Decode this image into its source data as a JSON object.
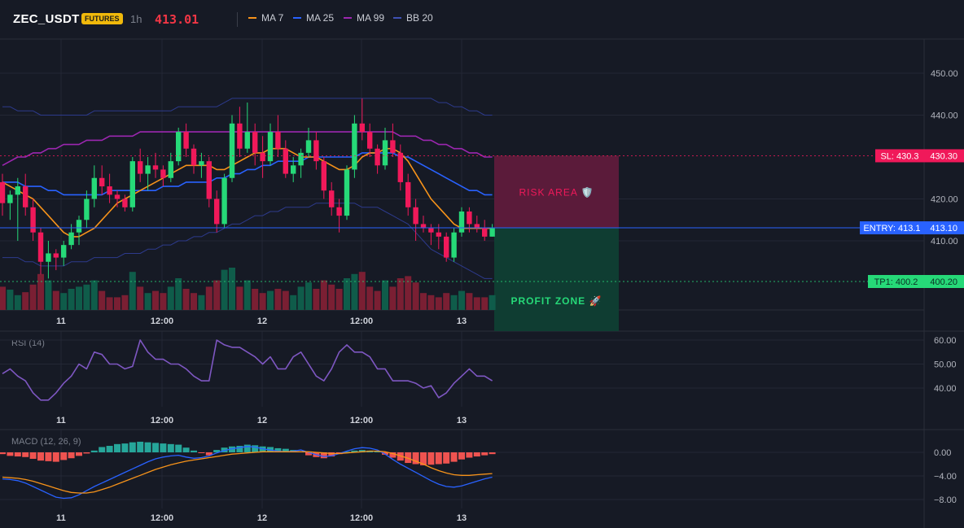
{
  "header": {
    "symbol": "ZEC_USDT",
    "badge": "FUTURES",
    "timeframe": "1h",
    "last_price": "413.01",
    "indicators": [
      {
        "label": "MA 7",
        "color": "#f7931a"
      },
      {
        "label": "MA 25",
        "color": "#2962ff"
      },
      {
        "label": "MA 99",
        "color": "#9c27b0"
      },
      {
        "label": "BB 20",
        "color": "#3f51b5"
      }
    ]
  },
  "colors": {
    "up": "#26d978",
    "down": "#f0195a",
    "background": "#161a25",
    "grid": "#232735",
    "risk": "#f0195a",
    "profit": "#26d978",
    "entry": "#2962ff"
  },
  "price_axis": {
    "ticks": [
      "450.00",
      "440.00",
      "430.30",
      "420.00",
      "413.10",
      "410.00",
      "400.20"
    ]
  },
  "time_axis": {
    "labels": [
      "11",
      "12:00",
      "12",
      "12:00",
      "13"
    ]
  },
  "levels": {
    "sl": {
      "label": "SL: 430.3",
      "price": "430.30",
      "value": 430.3
    },
    "entry": {
      "label": "ENTRY: 413.1",
      "price": "413.10",
      "value": 413.1
    },
    "tp1": {
      "label": "TP1: 400.2",
      "price": "400.20",
      "value": 400.2
    }
  },
  "zones": {
    "risk_label": "RISK AREA 🛡️",
    "profit_label": "PROFIT ZONE 🚀"
  },
  "rsi": {
    "title": "RSI (14)",
    "ticks": [
      "60.00",
      "50.00",
      "40.00"
    ],
    "values": [
      46,
      48,
      45,
      43,
      38,
      35,
      35,
      38,
      42,
      45,
      50,
      48,
      55,
      54,
      50,
      50,
      48,
      49,
      60,
      55,
      52,
      52,
      50,
      50,
      48,
      45,
      43,
      43,
      60,
      58,
      57,
      57,
      55,
      53,
      50,
      53,
      48,
      48,
      53,
      55,
      50,
      45,
      43,
      48,
      55,
      58,
      55,
      55,
      53,
      48,
      48,
      43,
      43,
      43,
      42,
      40,
      41,
      36,
      38,
      42,
      45,
      48,
      45,
      45,
      43
    ]
  },
  "macd": {
    "title": "MACD (12, 26, 9)",
    "ticks": [
      "0.00",
      "−4.00",
      "−8.00"
    ],
    "histogram": [
      -0.3,
      -0.6,
      -0.7,
      -0.8,
      -1.1,
      -1.4,
      -1.5,
      -1.6,
      -1.3,
      -1.0,
      -0.6,
      -0.2,
      0.3,
      0.9,
      1.1,
      1.4,
      1.5,
      1.7,
      1.8,
      1.7,
      1.6,
      1.5,
      1.4,
      1.3,
      0.8,
      0.3,
      -0.1,
      -0.5,
      0.4,
      0.8,
      1.0,
      1.1,
      1.3,
      1.2,
      1.0,
      0.9,
      0.7,
      0.6,
      0.4,
      0.2,
      -0.5,
      -0.8,
      -1.0,
      -0.7,
      -0.3,
      0.1,
      0.3,
      0.4,
      0.3,
      0.2,
      -0.4,
      -0.9,
      -1.4,
      -1.8,
      -2.0,
      -2.2,
      -2.1,
      -2.0,
      -1.9,
      -1.6,
      -1.2,
      -0.9,
      -0.7,
      -0.5,
      -0.3
    ],
    "macd_line": [
      -4.5,
      -4.6,
      -4.8,
      -5.2,
      -5.8,
      -6.4,
      -7.0,
      -7.6,
      -7.8,
      -7.7,
      -7.2,
      -6.5,
      -5.8,
      -5.2,
      -4.6,
      -4.0,
      -3.4,
      -2.8,
      -2.2,
      -1.6,
      -1.1,
      -0.8,
      -0.6,
      -0.5,
      -0.8,
      -1.0,
      -0.9,
      -0.6,
      -0.1,
      0.3,
      0.6,
      0.8,
      1.0,
      0.9,
      0.6,
      0.4,
      0.2,
      0.1,
      0.2,
      0.4,
      0.0,
      -0.4,
      -0.7,
      -0.6,
      -0.2,
      0.2,
      0.6,
      0.8,
      0.7,
      0.4,
      -0.3,
      -1.2,
      -2.0,
      -2.7,
      -3.4,
      -4.1,
      -4.8,
      -5.4,
      -5.8,
      -5.9,
      -5.7,
      -5.3,
      -4.9,
      -4.5,
      -4.2
    ],
    "signal_line": [
      -4.2,
      -4.3,
      -4.4,
      -4.6,
      -4.9,
      -5.3,
      -5.7,
      -6.1,
      -6.5,
      -6.8,
      -6.9,
      -6.9,
      -6.7,
      -6.3,
      -5.9,
      -5.4,
      -4.9,
      -4.4,
      -3.9,
      -3.4,
      -2.9,
      -2.5,
      -2.1,
      -1.8,
      -1.5,
      -1.3,
      -1.1,
      -0.9,
      -0.7,
      -0.5,
      -0.3,
      -0.2,
      -0.1,
      0.0,
      0.1,
      0.1,
      0.1,
      0.1,
      0.1,
      0.1,
      0.1,
      0.0,
      -0.1,
      -0.2,
      -0.2,
      -0.1,
      0.0,
      0.1,
      0.2,
      0.2,
      0.1,
      -0.2,
      -0.6,
      -1.0,
      -1.5,
      -2.0,
      -2.6,
      -3.1,
      -3.5,
      -3.8,
      -3.9,
      -3.9,
      -3.8,
      -3.7,
      -3.6
    ]
  },
  "chart_data": {
    "type": "candlestick",
    "symbol": "ZEC_USDT",
    "interval": "1h",
    "price_range": [
      392,
      455
    ],
    "candles_ohlc": [
      [
        424,
        426,
        416,
        419
      ],
      [
        419,
        422,
        415,
        421
      ],
      [
        421,
        425,
        410,
        423
      ],
      [
        423,
        426,
        416,
        418
      ],
      [
        418,
        420,
        410,
        412
      ],
      [
        412,
        413,
        402,
        405
      ],
      [
        405,
        410,
        401,
        407
      ],
      [
        407,
        408,
        403,
        406
      ],
      [
        406,
        410,
        404,
        409
      ],
      [
        409,
        414,
        408,
        412
      ],
      [
        412,
        416,
        409,
        415
      ],
      [
        415,
        422,
        413,
        420
      ],
      [
        420,
        428,
        418,
        425
      ],
      [
        425,
        428,
        421,
        423
      ],
      [
        423,
        426,
        419,
        421
      ],
      [
        421,
        422,
        418,
        420
      ],
      [
        420,
        421,
        417,
        418
      ],
      [
        418,
        430,
        417,
        429
      ],
      [
        429,
        432,
        424,
        426
      ],
      [
        426,
        430,
        422,
        428
      ],
      [
        428,
        431,
        425,
        427
      ],
      [
        427,
        428,
        423,
        425
      ],
      [
        425,
        431,
        424,
        429
      ],
      [
        429,
        437,
        428,
        436
      ],
      [
        436,
        438,
        430,
        432
      ],
      [
        432,
        433,
        426,
        428
      ],
      [
        428,
        431,
        425,
        429
      ],
      [
        429,
        430,
        418,
        420
      ],
      [
        420,
        422,
        412,
        414
      ],
      [
        414,
        426,
        413,
        425
      ],
      [
        425,
        440,
        424,
        438
      ],
      [
        438,
        442,
        430,
        432
      ],
      [
        432,
        443,
        431,
        436
      ],
      [
        436,
        438,
        428,
        431
      ],
      [
        431,
        435,
        425,
        429
      ],
      [
        429,
        438,
        428,
        436
      ],
      [
        436,
        440,
        430,
        432
      ],
      [
        432,
        434,
        425,
        426
      ],
      [
        426,
        430,
        424,
        428
      ],
      [
        428,
        432,
        425,
        431
      ],
      [
        431,
        437,
        430,
        434
      ],
      [
        434,
        436,
        427,
        429
      ],
      [
        429,
        430,
        420,
        422
      ],
      [
        422,
        424,
        416,
        418
      ],
      [
        418,
        420,
        412,
        416
      ],
      [
        416,
        428,
        415,
        427
      ],
      [
        427,
        440,
        425,
        438
      ],
      [
        438,
        444,
        434,
        436
      ],
      [
        436,
        438,
        430,
        432
      ],
      [
        432,
        433,
        426,
        428
      ],
      [
        428,
        437,
        427,
        434
      ],
      [
        434,
        438,
        430,
        431
      ],
      [
        431,
        433,
        422,
        424
      ],
      [
        424,
        426,
        416,
        418
      ],
      [
        418,
        420,
        410,
        414
      ],
      [
        414,
        416,
        412,
        413
      ],
      [
        413,
        414,
        409,
        412
      ],
      [
        412,
        414,
        408,
        411
      ],
      [
        411,
        412,
        405,
        406
      ],
      [
        406,
        413,
        405,
        412
      ],
      [
        412,
        418,
        411,
        417
      ],
      [
        417,
        418,
        412,
        414
      ],
      [
        414,
        416,
        412,
        413
      ],
      [
        413,
        415,
        410,
        411
      ],
      [
        411,
        414,
        411,
        413
      ]
    ],
    "ma7": [
      424,
      423,
      422,
      421,
      420,
      418,
      416,
      414,
      412,
      411,
      411,
      412,
      413,
      415,
      417,
      419,
      420,
      421,
      422,
      423,
      424,
      425,
      426,
      427,
      428,
      428,
      428,
      428,
      427,
      427,
      428,
      429,
      430,
      431,
      431,
      432,
      432,
      432,
      431,
      430,
      430,
      430,
      429,
      428,
      427,
      427,
      428,
      430,
      431,
      431,
      432,
      432,
      431,
      429,
      426,
      423,
      420,
      418,
      416,
      414,
      413,
      413,
      413,
      413,
      413
    ],
    "ma25": [
      424,
      424,
      424,
      423,
      423,
      423,
      422,
      422,
      421,
      421,
      421,
      421,
      421,
      421,
      422,
      422,
      422,
      422,
      422,
      422,
      422,
      423,
      423,
      423,
      424,
      424,
      424,
      424,
      425,
      425,
      426,
      426,
      427,
      427,
      428,
      428,
      429,
      429,
      429,
      429,
      430,
      430,
      430,
      430,
      430,
      430,
      430,
      431,
      431,
      431,
      431,
      431,
      430,
      430,
      429,
      428,
      427,
      426,
      425,
      424,
      423,
      422,
      422,
      421,
      421
    ],
    "ma99": [
      428,
      429,
      430,
      430,
      431,
      431,
      432,
      432,
      433,
      433,
      433,
      434,
      434,
      434,
      435,
      435,
      435,
      435,
      436,
      436,
      436,
      436,
      436,
      436,
      436,
      436,
      436,
      436,
      436,
      436,
      436,
      436,
      436,
      436,
      436,
      436,
      436,
      436,
      436,
      436,
      436,
      436,
      436,
      436,
      436,
      436,
      436,
      436,
      436,
      436,
      436,
      436,
      435,
      435,
      435,
      434,
      434,
      433,
      433,
      432,
      432,
      431,
      431,
      430,
      430
    ],
    "bb_upper": [
      442,
      442,
      441,
      441,
      441,
      440,
      440,
      440,
      440,
      440,
      440,
      440,
      441,
      441,
      441,
      441,
      441,
      441,
      441,
      441,
      441,
      441,
      441,
      442,
      442,
      442,
      442,
      442,
      442,
      443,
      444,
      444,
      444,
      444,
      444,
      444,
      444,
      444,
      444,
      444,
      444,
      444,
      444,
      444,
      444,
      444,
      444,
      444,
      444,
      444,
      444,
      444,
      444,
      444,
      444,
      444,
      444,
      443,
      443,
      442,
      442,
      441,
      441,
      440,
      440
    ],
    "bb_lower": [
      406,
      406,
      406,
      405,
      405,
      404,
      404,
      404,
      404,
      405,
      405,
      405,
      406,
      406,
      406,
      406,
      407,
      407,
      407,
      408,
      408,
      409,
      409,
      410,
      410,
      411,
      411,
      412,
      412,
      413,
      414,
      414,
      415,
      416,
      416,
      417,
      417,
      418,
      418,
      418,
      418,
      419,
      419,
      419,
      419,
      419,
      419,
      418,
      418,
      418,
      417,
      416,
      415,
      414,
      412,
      410,
      408,
      407,
      406,
      405,
      404,
      403,
      402,
      401,
      401
    ],
    "volume": [
      0.55,
      0.48,
      0.35,
      0.42,
      0.6,
      0.85,
      0.7,
      0.45,
      0.4,
      0.5,
      0.55,
      0.6,
      0.7,
      0.45,
      0.3,
      0.3,
      0.35,
      0.9,
      0.55,
      0.4,
      0.45,
      0.4,
      0.55,
      0.75,
      0.5,
      0.4,
      0.35,
      0.55,
      0.7,
      0.95,
      1.0,
      0.55,
      0.7,
      0.5,
      0.4,
      0.45,
      0.5,
      0.45,
      0.35,
      0.55,
      0.65,
      0.5,
      0.7,
      0.6,
      0.5,
      0.75,
      0.85,
      0.9,
      0.55,
      0.45,
      0.7,
      0.55,
      0.75,
      0.8,
      0.65,
      0.4,
      0.35,
      0.3,
      0.4,
      0.35,
      0.45,
      0.4,
      0.3,
      0.3,
      0.35
    ],
    "time_labels": [
      "11",
      "12:00",
      "12",
      "12:00",
      "13"
    ]
  }
}
